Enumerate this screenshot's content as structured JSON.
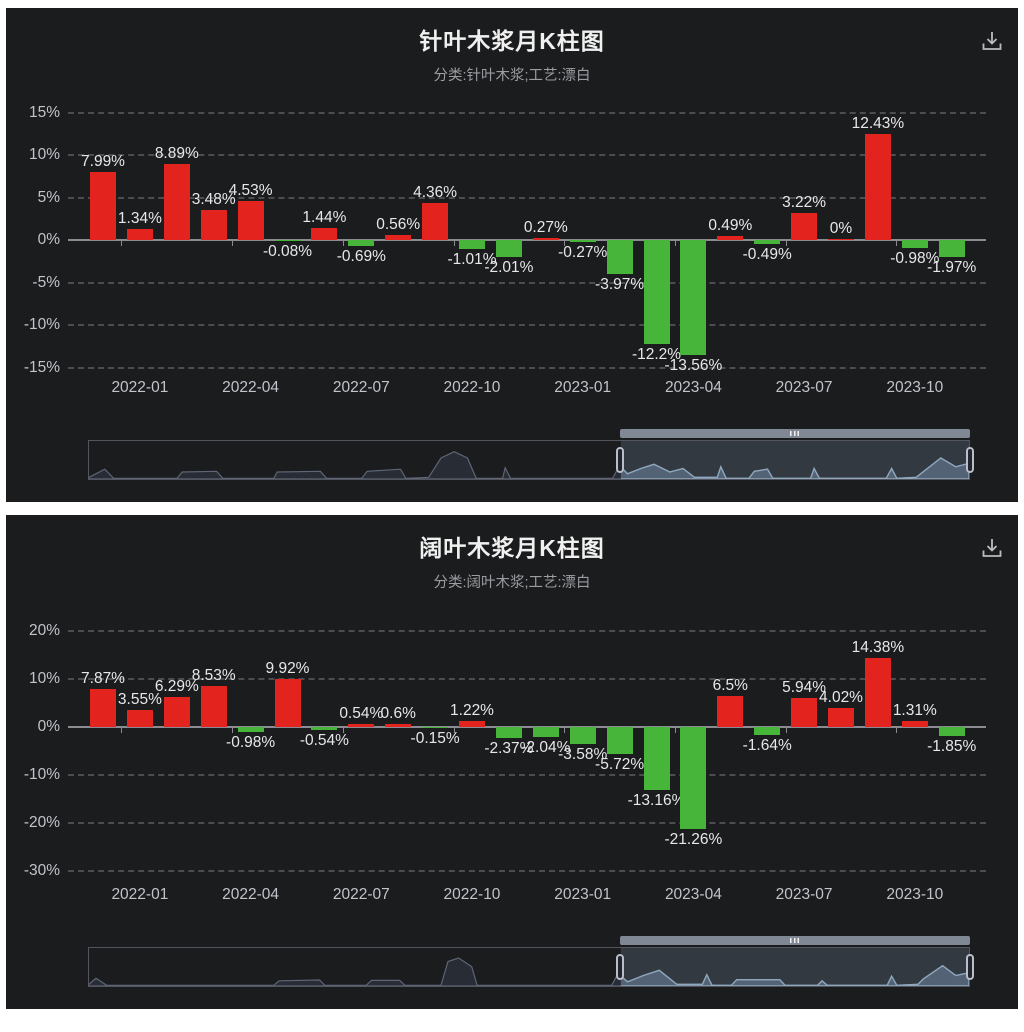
{
  "page": {
    "background": "#ffffff",
    "panel_background": "#1b1c1d"
  },
  "colors": {
    "positive_bar": "#e2231e",
    "negative_bar": "#47b43a",
    "title": "#f0f0f0",
    "subtitle": "#9c9ca2",
    "axis_label": "#c3c3cb",
    "value_label": "#e8e8ea",
    "gridline": "#55555b",
    "zero_axis": "#8b8b91",
    "datazoom_fill": "rgba(128,152,178,0.24)",
    "datazoom_handle_border": "#b9bec8"
  },
  "charts": [
    {
      "title": "针叶木浆月K柱图",
      "subtitle": "分类:针叶木浆;工艺:漂白",
      "toolbox": {
        "icon": "save-as-image-icon"
      },
      "chart_data": {
        "type": "bar",
        "values": [
          7.99,
          1.34,
          8.89,
          3.48,
          4.53,
          -0.08,
          1.44,
          -0.69,
          0.56,
          4.36,
          -1.01,
          -2.01,
          0.27,
          -0.27,
          -3.97,
          -12.2,
          -13.56,
          0.49,
          -0.49,
          3.22,
          0,
          12.43,
          -0.98,
          -1.97
        ],
        "value_labels": [
          "7.99%",
          "1.34%",
          "8.89%",
          "3.48%",
          "4.53%",
          "-0.08%",
          "1.44%",
          "-0.69%",
          "0.56%",
          "4.36%",
          "-1.01%",
          "-2.01%",
          "0.27%",
          "-0.27%",
          "-3.97%",
          "-12.2%",
          "-13.56%",
          "0.49%",
          "-0.49%",
          "3.22%",
          "0%",
          "12.43%",
          "-0.98%",
          "-1.97%"
        ],
        "x_tick_labels": [
          "2022-01",
          "2022-04",
          "2022-07",
          "2022-10",
          "2023-01",
          "2023-04",
          "2023-07",
          "2023-10"
        ],
        "x_tick_indices": [
          1,
          4,
          7,
          10,
          13,
          16,
          19,
          22
        ],
        "y_tick_labels": [
          "15%",
          "10%",
          "5%",
          "0%",
          "-5%",
          "-10%",
          "-15%"
        ],
        "y_tick_values": [
          15,
          10,
          5,
          0,
          -5,
          -10,
          -15
        ],
        "ylim": [
          -15,
          15
        ],
        "grid": "horizontal dashed",
        "legend": "none",
        "bar_color_rule": "red if value >= 0, green if value < 0"
      },
      "datazoom": {
        "window_start": 0.603,
        "window_end": 1.0,
        "preview_profile": [
          [
            0,
            0.05
          ],
          [
            0.018,
            0.28
          ],
          [
            0.028,
            0.02
          ],
          [
            0.1,
            0.02
          ],
          [
            0.106,
            0.2
          ],
          [
            0.145,
            0.22
          ],
          [
            0.152,
            0.02
          ],
          [
            0.21,
            0.02
          ],
          [
            0.214,
            0.2
          ],
          [
            0.263,
            0.22
          ],
          [
            0.27,
            0.02
          ],
          [
            0.31,
            0.02
          ],
          [
            0.316,
            0.22
          ],
          [
            0.354,
            0.28
          ],
          [
            0.36,
            0.02
          ],
          [
            0.386,
            0.05
          ],
          [
            0.4,
            0.6
          ],
          [
            0.415,
            0.78
          ],
          [
            0.43,
            0.6
          ],
          [
            0.44,
            0.02
          ],
          [
            0.47,
            0.02
          ],
          [
            0.473,
            0.32
          ],
          [
            0.479,
            0.02
          ],
          [
            0.595,
            0.02
          ],
          [
            0.603,
            0.38
          ],
          [
            0.612,
            0.15
          ],
          [
            0.627,
            0.3
          ],
          [
            0.642,
            0.42
          ],
          [
            0.66,
            0.2
          ],
          [
            0.675,
            0.3
          ],
          [
            0.688,
            0.05
          ],
          [
            0.714,
            0.05
          ],
          [
            0.718,
            0.35
          ],
          [
            0.724,
            0.02
          ],
          [
            0.75,
            0.02
          ],
          [
            0.756,
            0.22
          ],
          [
            0.771,
            0.28
          ],
          [
            0.777,
            0.02
          ],
          [
            0.82,
            0.02
          ],
          [
            0.824,
            0.3
          ],
          [
            0.83,
            0.02
          ],
          [
            0.906,
            0.02
          ],
          [
            0.912,
            0.3
          ],
          [
            0.918,
            0.02
          ],
          [
            0.94,
            0.05
          ],
          [
            0.945,
            0.15
          ],
          [
            0.968,
            0.6
          ],
          [
            0.985,
            0.35
          ],
          [
            1,
            0.45
          ]
        ]
      }
    },
    {
      "title": "阔叶木浆月K柱图",
      "subtitle": "分类:阔叶木浆;工艺:漂白",
      "toolbox": {
        "icon": "save-as-image-icon"
      },
      "chart_data": {
        "type": "bar",
        "values": [
          7.87,
          3.55,
          6.29,
          8.53,
          -0.98,
          9.92,
          -0.54,
          0.54,
          0.6,
          -0.15,
          1.22,
          -2.37,
          -2.04,
          -3.58,
          -5.72,
          -13.16,
          -21.26,
          6.5,
          -1.64,
          5.94,
          4.02,
          14.38,
          1.31,
          -1.85
        ],
        "value_labels": [
          "7.87%",
          "3.55%",
          "6.29%",
          "8.53%",
          "-0.98%",
          "9.92%",
          "-0.54%",
          "0.54%",
          "0.6%",
          "-0.15%",
          "1.22%",
          "-2.37%",
          "-2.04%",
          "-3.58%",
          "-5.72%",
          "-13.16%",
          "-21.26%",
          "6.5%",
          "-1.64%",
          "5.94%",
          "4.02%",
          "14.38%",
          "1.31%",
          "-1.85%"
        ],
        "x_tick_labels": [
          "2022-01",
          "2022-04",
          "2022-07",
          "2022-10",
          "2023-01",
          "2023-04",
          "2023-07",
          "2023-10"
        ],
        "x_tick_indices": [
          1,
          4,
          7,
          10,
          13,
          16,
          19,
          22
        ],
        "y_tick_labels": [
          "20%",
          "10%",
          "0%",
          "-10%",
          "-20%",
          "-30%"
        ],
        "y_tick_values": [
          20,
          10,
          0,
          -10,
          -20,
          -30
        ],
        "ylim": [
          -30,
          20
        ],
        "grid": "horizontal dashed",
        "legend": "none",
        "bar_color_rule": "red if value >= 0, green if value < 0"
      },
      "datazoom": {
        "window_start": 0.603,
        "window_end": 1.0,
        "preview_profile": [
          [
            0,
            0.05
          ],
          [
            0.008,
            0.22
          ],
          [
            0.02,
            0.02
          ],
          [
            0.21,
            0.02
          ],
          [
            0.216,
            0.15
          ],
          [
            0.262,
            0.17
          ],
          [
            0.268,
            0.02
          ],
          [
            0.315,
            0.02
          ],
          [
            0.321,
            0.16
          ],
          [
            0.353,
            0.16
          ],
          [
            0.359,
            0.02
          ],
          [
            0.4,
            0.02
          ],
          [
            0.408,
            0.7
          ],
          [
            0.42,
            0.8
          ],
          [
            0.435,
            0.55
          ],
          [
            0.441,
            0.02
          ],
          [
            0.594,
            0.02
          ],
          [
            0.601,
            0.35
          ],
          [
            0.612,
            0.12
          ],
          [
            0.63,
            0.3
          ],
          [
            0.648,
            0.45
          ],
          [
            0.668,
            0.05
          ],
          [
            0.697,
            0.05
          ],
          [
            0.702,
            0.32
          ],
          [
            0.708,
            0.02
          ],
          [
            0.73,
            0.02
          ],
          [
            0.736,
            0.18
          ],
          [
            0.785,
            0.18
          ],
          [
            0.791,
            0.02
          ],
          [
            0.828,
            0.02
          ],
          [
            0.833,
            0.15
          ],
          [
            0.839,
            0.02
          ],
          [
            0.907,
            0.02
          ],
          [
            0.912,
            0.28
          ],
          [
            0.918,
            0.02
          ],
          [
            0.942,
            0.05
          ],
          [
            0.948,
            0.2
          ],
          [
            0.97,
            0.58
          ],
          [
            0.985,
            0.3
          ],
          [
            1,
            0.38
          ]
        ]
      }
    }
  ]
}
